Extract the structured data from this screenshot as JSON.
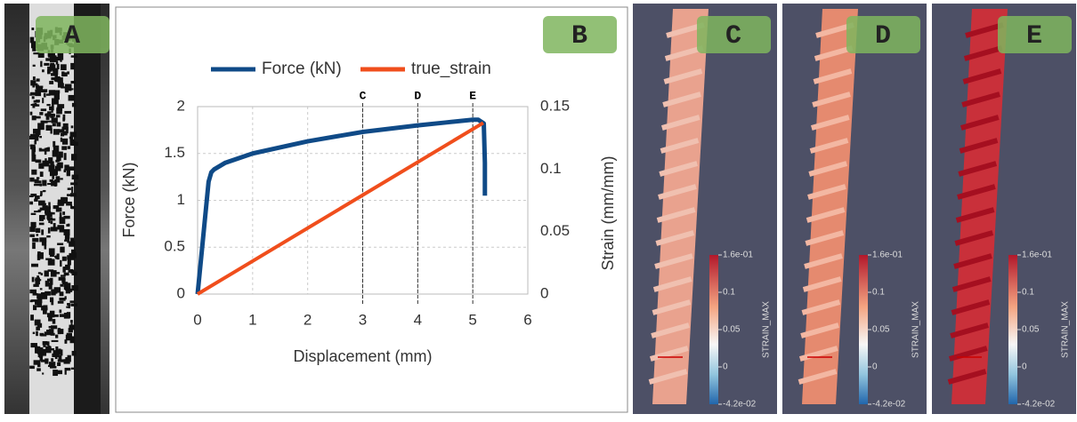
{
  "panel_labels": [
    "A",
    "B",
    "C",
    "D",
    "E"
  ],
  "colorbar": {
    "title": "STRAIN_MAX",
    "ticks": [
      "1.6e-01",
      "0.1",
      "0.05",
      "0",
      "-4.2e-02"
    ]
  },
  "chart_data": {
    "type": "line",
    "x_label": "Displacement (mm)",
    "y_label": "Force (kN)",
    "y2_label": "Strain (mm/mm)",
    "series": [
      {
        "name": "Force (kN)",
        "color": "#0f4a87",
        "x": [
          0,
          0.1,
          0.2,
          0.25,
          0.3,
          0.5,
          1,
          2,
          3,
          4,
          4.5,
          5,
          5.1,
          5.2,
          5.22,
          5.22
        ],
        "values": [
          0,
          0.6,
          1.2,
          1.3,
          1.33,
          1.4,
          1.5,
          1.63,
          1.73,
          1.8,
          1.83,
          1.86,
          1.86,
          1.82,
          1.4,
          1.05
        ]
      },
      {
        "name": "true_strain",
        "color": "#f04e1c",
        "axis": "y2",
        "x": [
          0,
          5.19
        ],
        "values": [
          0,
          0.137
        ]
      }
    ],
    "markers": [
      {
        "x": 3,
        "label": "C"
      },
      {
        "x": 4,
        "label": "D"
      },
      {
        "x": 5,
        "label": "E"
      }
    ],
    "xlim": [
      0,
      6
    ],
    "xticks": [
      0,
      1,
      2,
      3,
      4,
      5,
      6
    ],
    "ylim": [
      0,
      2
    ],
    "yticks": [
      0,
      0.5,
      1,
      1.5,
      2
    ],
    "y2lim": [
      0,
      0.15
    ],
    "y2ticks": [
      0,
      0.05,
      0.1,
      0.15
    ],
    "grid": true,
    "legend": "top"
  }
}
